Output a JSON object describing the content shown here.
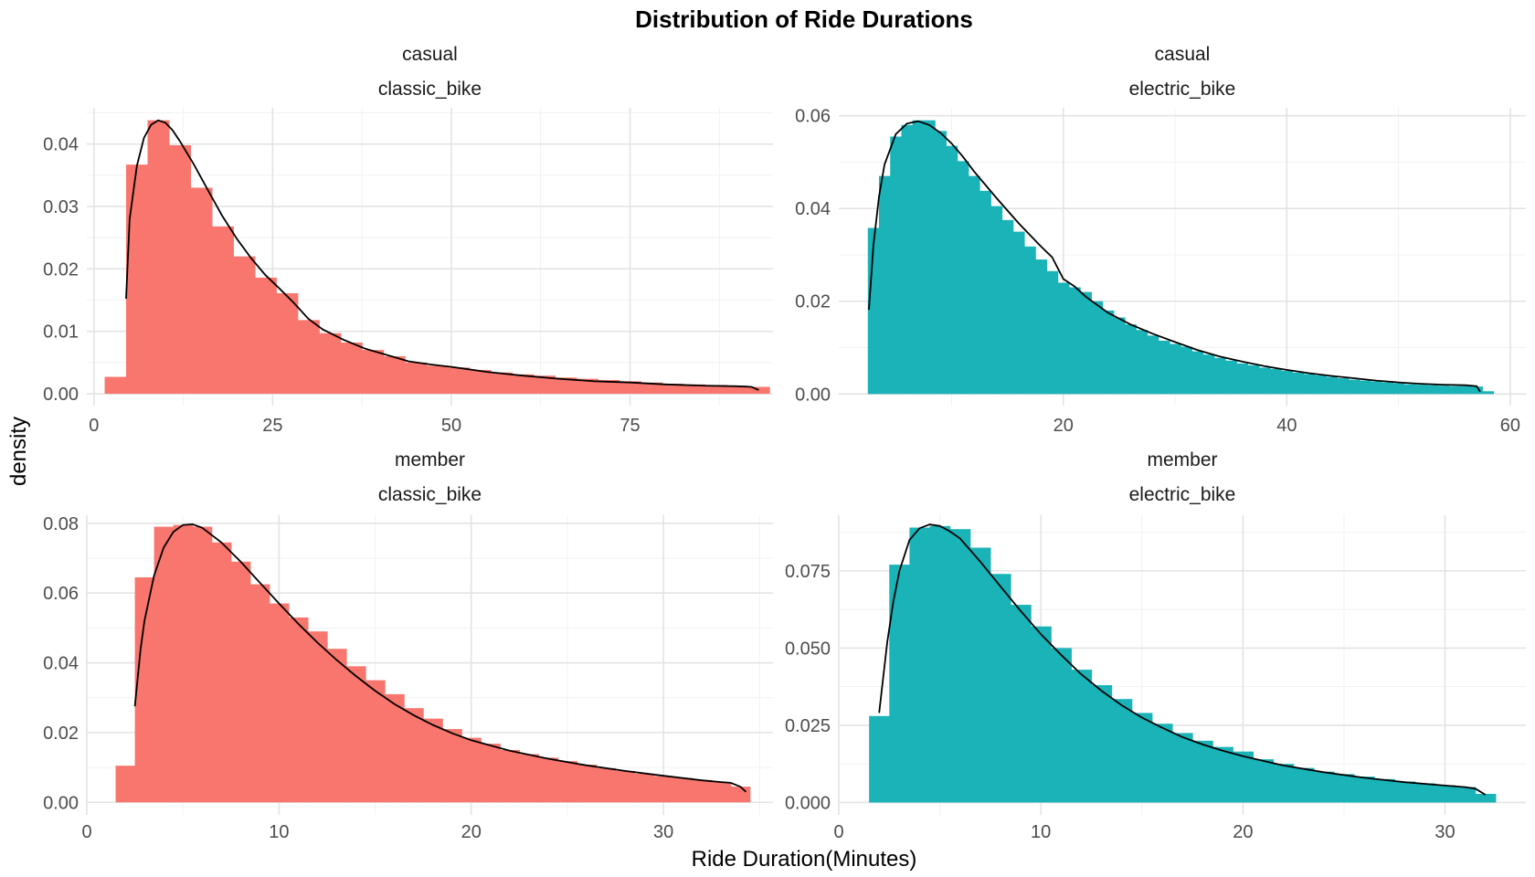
{
  "chart_data": {
    "type": "histogram",
    "title": "Distribution of Ride Durations",
    "xlabel": "Ride Duration(Minutes)",
    "ylabel": "density",
    "grid": true,
    "overlay": "density curve",
    "colors": {
      "classic_bike": "#F8766D",
      "electric_bike": "#1AB3B8",
      "curve": "#000000"
    },
    "panels": [
      {
        "strip_top": "casual",
        "strip_bottom": "classic_bike",
        "color": "#F8766D",
        "xlim": [
          -1,
          95
        ],
        "ylim": [
          -0.0019,
          0.0458
        ],
        "x_ticks": [
          0,
          25,
          50,
          75
        ],
        "x_tick_labels": [
          "0",
          "25",
          "50",
          "75"
        ],
        "y_ticks": [
          0,
          0.01,
          0.02,
          0.03,
          0.04
        ],
        "y_tick_labels": [
          "0.00",
          "0.01",
          "0.02",
          "0.03",
          "0.04"
        ],
        "bin_edges": [
          1.5,
          4.5,
          7.5,
          10.5,
          13.5,
          16.5,
          19.5,
          22.5,
          25.5,
          28.5,
          31.5,
          34.5,
          37.5,
          40.5,
          43.5,
          46.5,
          49.5,
          52.5,
          55.5,
          58.5,
          61.5,
          64.5,
          67.5,
          70.5,
          73.5,
          76.5,
          79.5,
          82.5,
          85.5,
          88.5,
          91.5,
          94.5
        ],
        "bin_values": [
          0.0027,
          0.0367,
          0.0438,
          0.0398,
          0.033,
          0.0268,
          0.022,
          0.0186,
          0.0161,
          0.0118,
          0.0097,
          0.0082,
          0.007,
          0.006,
          0.005,
          0.0045,
          0.0042,
          0.0038,
          0.0034,
          0.0031,
          0.0029,
          0.0026,
          0.0024,
          0.0022,
          0.002,
          0.0018,
          0.0016,
          0.0015,
          0.0014,
          0.0013,
          0.0011
        ],
        "curve_x": [
          4.5,
          5,
          6,
          7,
          8,
          9,
          10,
          11,
          12,
          14,
          16,
          18,
          20,
          22,
          24,
          26,
          28,
          30,
          32,
          35,
          38,
          41,
          44,
          47,
          50,
          55,
          60,
          65,
          70,
          75,
          80,
          85,
          90,
          92,
          93
        ],
        "curve_y": [
          0.0152,
          0.028,
          0.0365,
          0.041,
          0.0431,
          0.0438,
          0.0434,
          0.0422,
          0.0405,
          0.0367,
          0.0325,
          0.0284,
          0.0248,
          0.0217,
          0.019,
          0.0168,
          0.0145,
          0.012,
          0.0103,
          0.0086,
          0.0072,
          0.0062,
          0.0052,
          0.0047,
          0.0043,
          0.0035,
          0.0029,
          0.0024,
          0.002,
          0.0018,
          0.0015,
          0.0013,
          0.0012,
          0.0011,
          0.0006
        ]
      },
      {
        "strip_top": "casual",
        "strip_bottom": "electric_bike",
        "color": "#1AB3B8",
        "xlim": [
          -0.1,
          61.4
        ],
        "ylim": [
          -0.0025,
          0.0617
        ],
        "x_ticks": [
          20,
          40,
          60
        ],
        "x_tick_labels": [
          "20",
          "40",
          "60"
        ],
        "y_ticks": [
          0,
          0.02,
          0.04,
          0.06
        ],
        "y_tick_labels": [
          "0.00",
          "0.02",
          "0.04",
          "0.06"
        ],
        "bin_edges": [
          2.5,
          3.5,
          4.5,
          5.5,
          6.5,
          7.5,
          8.5,
          9.5,
          10.5,
          11.5,
          12.5,
          13.5,
          14.5,
          15.5,
          16.5,
          17.5,
          18.5,
          19.5,
          20.5,
          21.5,
          22.5,
          23.5,
          24.5,
          25.5,
          26.5,
          27.5,
          28.5,
          29.5,
          30.5,
          31.5,
          32.5,
          33.5,
          34.5,
          35.5,
          36.5,
          37.5,
          38.5,
          39.5,
          40.5,
          41.5,
          42.5,
          43.5,
          44.5,
          45.5,
          46.5,
          47.5,
          48.5,
          49.5,
          50.5,
          51.5,
          52.5,
          53.5,
          54.5,
          55.5,
          56.5,
          57.5,
          58.5
        ],
        "bin_values": [
          0.0358,
          0.047,
          0.0555,
          0.058,
          0.059,
          0.059,
          0.0567,
          0.0535,
          0.0502,
          0.047,
          0.0438,
          0.0405,
          0.0375,
          0.035,
          0.0318,
          0.029,
          0.0265,
          0.024,
          0.023,
          0.022,
          0.02,
          0.018,
          0.0165,
          0.015,
          0.0138,
          0.0126,
          0.0115,
          0.0108,
          0.0102,
          0.0092,
          0.0085,
          0.0078,
          0.0072,
          0.0066,
          0.0062,
          0.0057,
          0.0054,
          0.005,
          0.0046,
          0.0043,
          0.004,
          0.0037,
          0.0034,
          0.0031,
          0.0029,
          0.0027,
          0.0025,
          0.0023,
          0.0021,
          0.002,
          0.0019,
          0.0018,
          0.0017,
          0.0017,
          0.0016,
          0.0006
        ],
        "curve_x": [
          2.6,
          3,
          3.5,
          4,
          5,
          6,
          7,
          8,
          9,
          10,
          11,
          12,
          14,
          16,
          18,
          19,
          20,
          21,
          22,
          24,
          26,
          28,
          30,
          32,
          34,
          36,
          38,
          40,
          42,
          44,
          46,
          48,
          50,
          52,
          54,
          56,
          57,
          57.3
        ],
        "curve_y": [
          0.0182,
          0.032,
          0.0425,
          0.0495,
          0.056,
          0.0583,
          0.0588,
          0.058,
          0.0563,
          0.054,
          0.0512,
          0.048,
          0.0423,
          0.0368,
          0.0318,
          0.0295,
          0.0248,
          0.0232,
          0.021,
          0.0175,
          0.015,
          0.013,
          0.0112,
          0.0095,
          0.0081,
          0.007,
          0.006,
          0.0052,
          0.0045,
          0.0039,
          0.0034,
          0.0029,
          0.0025,
          0.0022,
          0.002,
          0.0019,
          0.0017,
          0.0005
        ]
      },
      {
        "strip_top": "member",
        "strip_bottom": "classic_bike",
        "color": "#F8766D",
        "xlim": [
          0,
          35.7
        ],
        "ylim": [
          -0.0036,
          0.0823
        ],
        "x_ticks": [
          0,
          10,
          20,
          30
        ],
        "x_tick_labels": [
          "0",
          "10",
          "20",
          "30"
        ],
        "y_ticks": [
          0,
          0.02,
          0.04,
          0.06,
          0.08
        ],
        "y_tick_labels": [
          "0.00",
          "0.02",
          "0.04",
          "0.06",
          "0.08"
        ],
        "bin_edges": [
          1.5,
          2.5,
          3.5,
          4.5,
          5.5,
          6.5,
          7.5,
          8.5,
          9.5,
          10.5,
          11.5,
          12.5,
          13.5,
          14.5,
          15.5,
          16.5,
          17.5,
          18.5,
          19.5,
          20.5,
          21.5,
          22.5,
          23.5,
          24.5,
          25.5,
          26.5,
          27.5,
          28.5,
          29.5,
          30.5,
          31.5,
          32.5,
          33.5,
          34.5
        ],
        "bin_values": [
          0.0105,
          0.0645,
          0.079,
          0.0795,
          0.079,
          0.0745,
          0.069,
          0.0625,
          0.057,
          0.053,
          0.049,
          0.044,
          0.039,
          0.035,
          0.031,
          0.027,
          0.024,
          0.021,
          0.0185,
          0.0168,
          0.015,
          0.0138,
          0.0128,
          0.0118,
          0.0108,
          0.0098,
          0.009,
          0.0082,
          0.0075,
          0.007,
          0.0064,
          0.0058,
          0.0045
        ],
        "curve_x": [
          2.5,
          2.8,
          3,
          3.5,
          4,
          4.5,
          5,
          5.5,
          6,
          7,
          8,
          9,
          10,
          11,
          12,
          13,
          14,
          15,
          16,
          17,
          18,
          19,
          20,
          22,
          24,
          26,
          28,
          30,
          32,
          33,
          33.5,
          34,
          34.3
        ],
        "curve_y": [
          0.0275,
          0.044,
          0.052,
          0.065,
          0.073,
          0.0775,
          0.0795,
          0.0797,
          0.0787,
          0.0745,
          0.069,
          0.063,
          0.057,
          0.0512,
          0.0458,
          0.0408,
          0.0362,
          0.032,
          0.0282,
          0.025,
          0.0222,
          0.0198,
          0.0178,
          0.0148,
          0.0125,
          0.0106,
          0.009,
          0.0076,
          0.0063,
          0.0058,
          0.0056,
          0.0045,
          0.003
        ]
      },
      {
        "strip_top": "member",
        "strip_bottom": "electric_bike",
        "color": "#1AB3B8",
        "xlim": [
          0,
          34
        ],
        "ylim": [
          -0.004,
          0.093
        ],
        "x_ticks": [
          0,
          10,
          20,
          30
        ],
        "x_tick_labels": [
          "0",
          "10",
          "20",
          "30"
        ],
        "y_ticks": [
          0,
          0.025,
          0.05,
          0.075
        ],
        "y_tick_labels": [
          "0.000",
          "0.025",
          "0.050",
          "0.075"
        ],
        "bin_edges": [
          1.5,
          2.5,
          3.5,
          4.5,
          5.5,
          6.5,
          7.5,
          8.5,
          9.5,
          10.5,
          11.5,
          12.5,
          13.5,
          14.5,
          15.5,
          16.5,
          17.5,
          18.5,
          19.5,
          20.5,
          21.5,
          22.5,
          23.5,
          24.5,
          25.5,
          26.5,
          27.5,
          28.5,
          29.5,
          30.5,
          31.5,
          32.5
        ],
        "bin_values": [
          0.028,
          0.077,
          0.089,
          0.0895,
          0.0885,
          0.0825,
          0.074,
          0.064,
          0.057,
          0.05,
          0.043,
          0.038,
          0.0335,
          0.029,
          0.0255,
          0.0225,
          0.02,
          0.018,
          0.0165,
          0.014,
          0.0125,
          0.0112,
          0.01,
          0.0092,
          0.0084,
          0.0076,
          0.0068,
          0.0062,
          0.0056,
          0.005,
          0.0028
        ],
        "curve_x": [
          2,
          2.4,
          2.7,
          3,
          3.5,
          4,
          4.5,
          5,
          5.5,
          6,
          7,
          8,
          9,
          10,
          11,
          12,
          13,
          14,
          15,
          16,
          17,
          18,
          19,
          20,
          22,
          24,
          26,
          28,
          30,
          31,
          31.5,
          32
        ],
        "curve_y": [
          0.029,
          0.052,
          0.065,
          0.075,
          0.085,
          0.0888,
          0.09,
          0.0895,
          0.0878,
          0.0855,
          0.078,
          0.07,
          0.062,
          0.0545,
          0.0478,
          0.0415,
          0.0362,
          0.0315,
          0.0275,
          0.0242,
          0.0212,
          0.0188,
          0.0168,
          0.015,
          0.012,
          0.0098,
          0.008,
          0.0066,
          0.0055,
          0.005,
          0.0045,
          0.0025
        ]
      }
    ]
  }
}
